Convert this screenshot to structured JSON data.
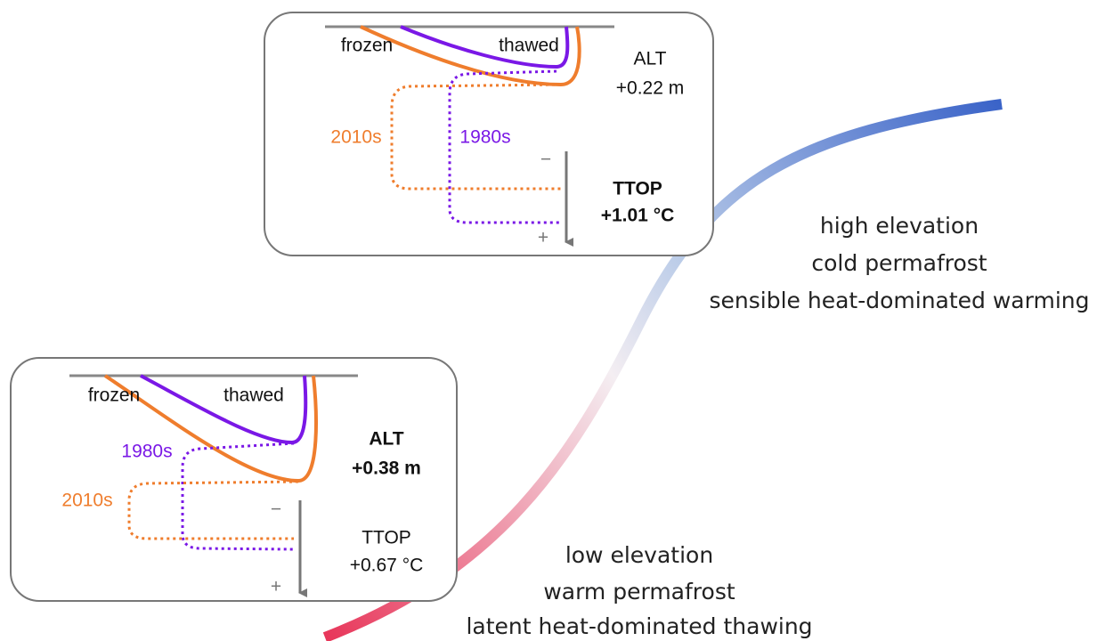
{
  "top_panel": {
    "frozen": "frozen",
    "thawed": "thawed",
    "alt_label": "ALT",
    "alt_value": "+0.22 m",
    "decade_recent": "2010s",
    "decade_past": "1980s",
    "minus": "−",
    "plus": "+",
    "ttop_label": "TTOP",
    "ttop_value": "+1.01 °C"
  },
  "bottom_panel": {
    "frozen": "frozen",
    "thawed": "thawed",
    "alt_label": "ALT",
    "alt_value": "+0.38 m",
    "decade_recent": "2010s",
    "decade_past": "1980s",
    "minus": "−",
    "plus": "+",
    "ttop_label": "TTOP",
    "ttop_value": "+0.67 °C"
  },
  "annotations": {
    "high": [
      "high elevation",
      "cold permafrost",
      "sensible heat-dominated warming"
    ],
    "low": [
      "low elevation",
      "warm permafrost",
      "latent heat-dominated thawing"
    ]
  }
}
